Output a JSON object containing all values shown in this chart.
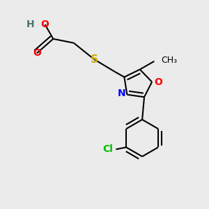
{
  "background_color": "#ebebeb",
  "bond_color": "#000000",
  "atom_colors": {
    "O": "#ff0000",
    "N": "#0000ff",
    "S": "#ccaa00",
    "Cl": "#00bb00",
    "H": "#507070",
    "C": "#000000"
  },
  "figsize": [
    3.0,
    3.0
  ],
  "dpi": 100,
  "bond_lw": 1.5,
  "font_size": 10
}
